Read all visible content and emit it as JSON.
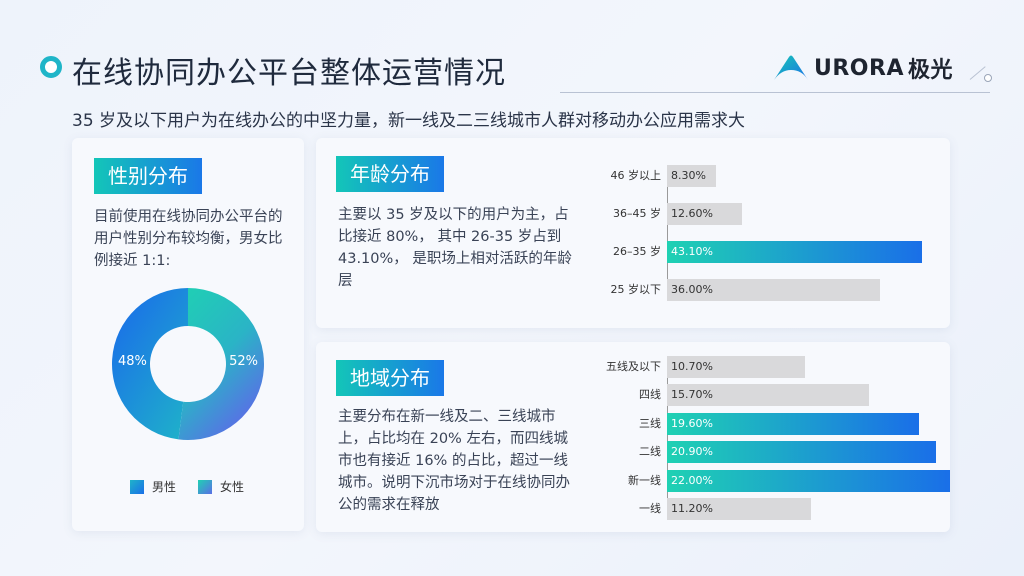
{
  "header": {
    "title": "在线协同办公平台整体运营情况",
    "logo_text": "URORA",
    "logo_suffix": "极光",
    "brand_color": "#1fb5c8"
  },
  "subtitle": "35 岁及以下用户为在线办公的中坚力量，新一线及二三线城市人群对移动办公应用需求大",
  "gender": {
    "tag": "性别分布",
    "desc": "目前使用在线协同办公平台的用户性别分布较均衡，男女比例接近 1:1:"
  },
  "age": {
    "tag": "年龄分布",
    "desc": "主要以 35 岁及以下的用户为主，占比接近 80%， 其中 26-35 岁占到 43.10%， 是职场上相对活跃的年龄层"
  },
  "region": {
    "tag": "地域分布",
    "desc": "主要分布在新一线及二、三线城市上，占比均在 20% 左右，而四线城市也有接近 16% 的占比，超过一线城市。说明下沉市场对于在线协同办公的需求在释放"
  },
  "chart_data": [
    {
      "type": "pie",
      "labels": [
        "男性",
        "女性"
      ],
      "values": [
        48,
        52
      ],
      "value_labels": [
        "48%",
        "52%"
      ],
      "colors": [
        "#1a6fe8",
        "#1fd1b3"
      ],
      "legend": "bottom"
    },
    {
      "type": "bar",
      "orientation": "horizontal",
      "categories": [
        "46 岁以上",
        "36–45 岁",
        "26–35 岁",
        "25 岁以下"
      ],
      "values": [
        8.3,
        12.6,
        43.1,
        36.0
      ],
      "value_labels": [
        "8.30%",
        "12.60%",
        "43.10%",
        "36.00%"
      ],
      "highlight": [
        false,
        false,
        true,
        false
      ],
      "xlim": [
        0,
        43.1
      ]
    },
    {
      "type": "bar",
      "orientation": "horizontal",
      "categories": [
        "五线及以下",
        "四线",
        "三线",
        "二线",
        "新一线",
        "一线"
      ],
      "values": [
        10.7,
        15.7,
        19.6,
        20.9,
        22.0,
        11.2
      ],
      "value_labels": [
        "10.70%",
        "15.70%",
        "19.60%",
        "20.90%",
        "22.00%",
        "11.20%"
      ],
      "highlight": [
        false,
        false,
        true,
        true,
        true,
        false
      ],
      "xlim": [
        0,
        22.0
      ]
    }
  ]
}
